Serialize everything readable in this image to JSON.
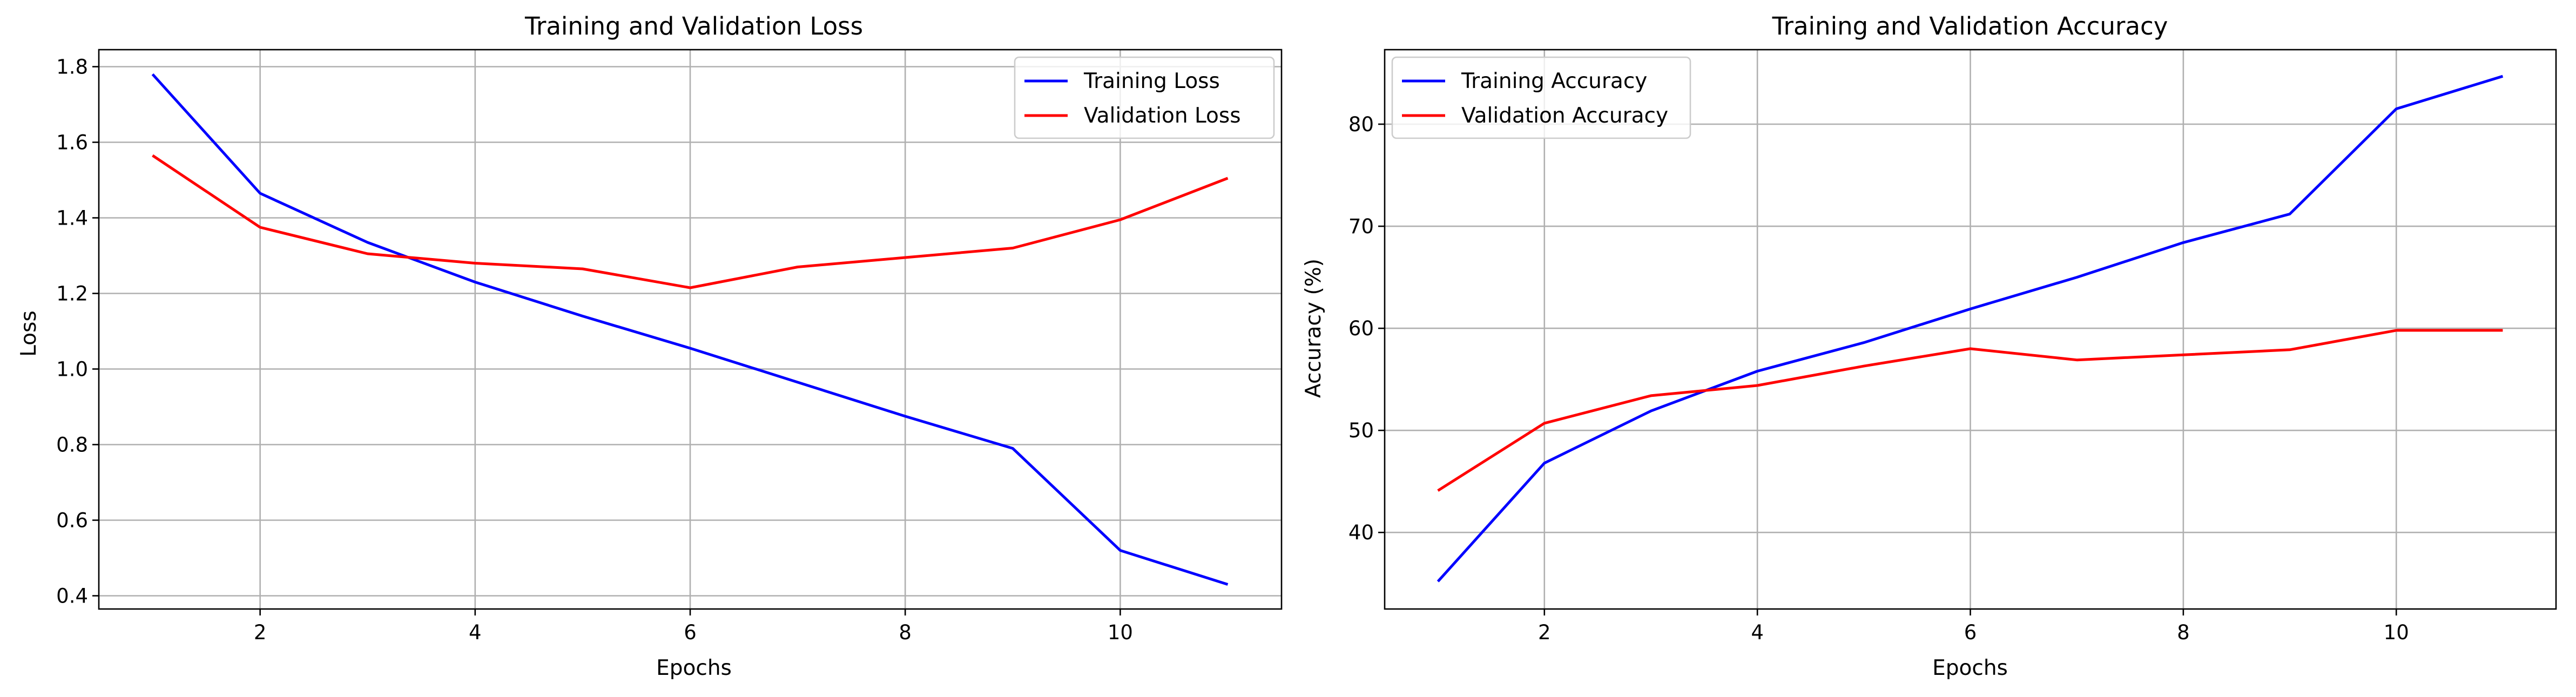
{
  "chart_data": [
    {
      "type": "line",
      "title": "Training and Validation Loss",
      "xlabel": "Epochs",
      "ylabel": "Loss",
      "x": [
        1,
        2,
        3,
        4,
        5,
        6,
        7,
        8,
        9,
        10,
        11
      ],
      "xlim": [
        0.5,
        11.5
      ],
      "ylim": [
        0.365,
        1.845
      ],
      "xticks": [
        2,
        4,
        6,
        8,
        10
      ],
      "yticks": [
        0.4,
        0.6,
        0.8,
        1.0,
        1.2,
        1.4,
        1.6,
        1.8
      ],
      "ytick_decimals": 1,
      "grid": true,
      "legend_position": "upper right",
      "series": [
        {
          "name": "Training Loss",
          "color": "#0000ff",
          "values": [
            1.78,
            1.465,
            1.335,
            1.23,
            1.14,
            1.055,
            0.965,
            0.875,
            0.79,
            0.52,
            0.43
          ]
        },
        {
          "name": "Validation Loss",
          "color": "#ff0000",
          "values": [
            1.565,
            1.375,
            1.305,
            1.28,
            1.265,
            1.215,
            1.27,
            1.295,
            1.32,
            1.395,
            1.505
          ]
        }
      ]
    },
    {
      "type": "line",
      "title": "Training and Validation Accuracy",
      "xlabel": "Epochs",
      "ylabel": "Accuracy (%)",
      "x": [
        1,
        2,
        3,
        4,
        5,
        6,
        7,
        8,
        9,
        10,
        11
      ],
      "xlim": [
        0.5,
        11.5
      ],
      "ylim": [
        32.5,
        87.3
      ],
      "xticks": [
        2,
        4,
        6,
        8,
        10
      ],
      "yticks": [
        40,
        50,
        60,
        70,
        80
      ],
      "ytick_decimals": 0,
      "grid": true,
      "legend_position": "upper left",
      "series": [
        {
          "name": "Training Accuracy",
          "color": "#0000ff",
          "values": [
            35.2,
            46.8,
            51.9,
            55.8,
            58.6,
            61.9,
            65.0,
            68.4,
            71.2,
            81.5,
            84.7
          ]
        },
        {
          "name": "Validation Accuracy",
          "color": "#ff0000",
          "values": [
            44.1,
            50.7,
            53.4,
            54.4,
            56.3,
            58.0,
            56.9,
            57.4,
            57.9,
            59.8,
            59.8
          ]
        }
      ]
    }
  ]
}
